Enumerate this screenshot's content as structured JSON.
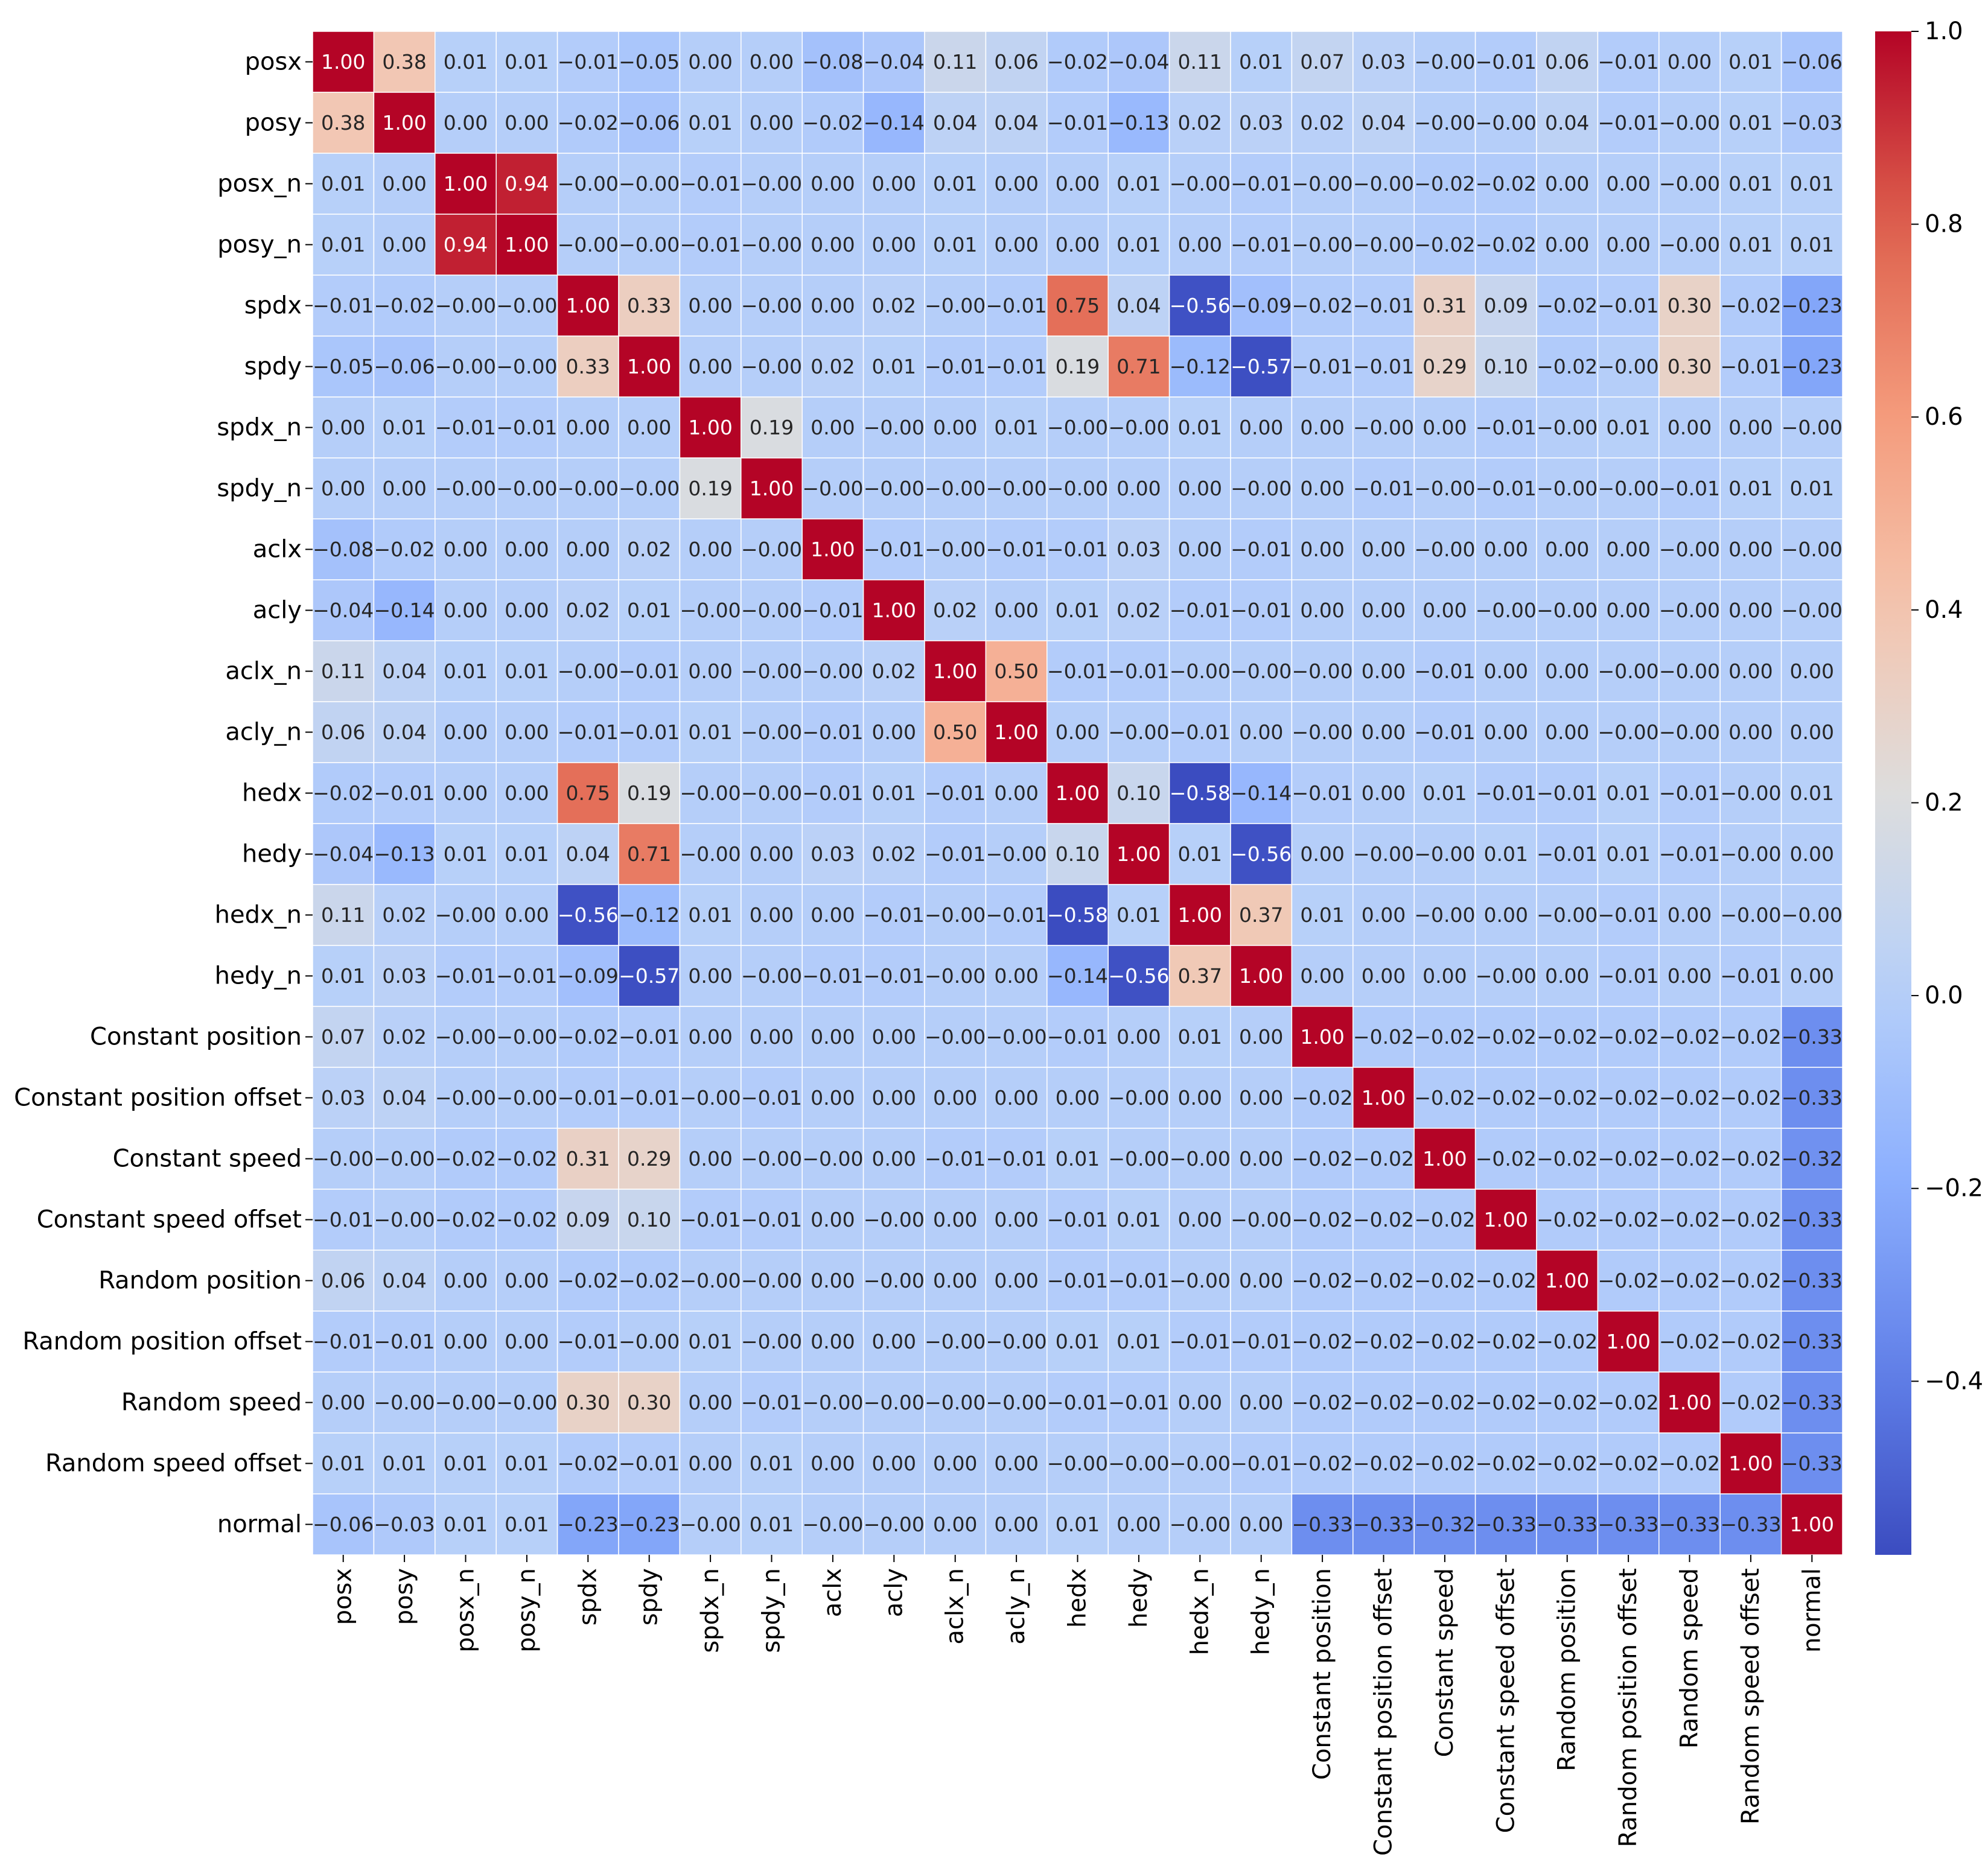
{
  "chart_data": {
    "type": "heatmap",
    "title": "",
    "xlabel": "",
    "ylabel": "",
    "colormap": "coolwarm",
    "vmin": -0.58,
    "vmax": 1.0,
    "annotated": true,
    "labels": [
      "posx",
      "posy",
      "posx_n",
      "posy_n",
      "spdx",
      "spdy",
      "spdx_n",
      "spdy_n",
      "aclx",
      "acly",
      "aclx_n",
      "acly_n",
      "hedx",
      "hedy",
      "hedx_n",
      "hedy_n",
      "Constant position",
      "Constant position offset",
      "Constant speed",
      "Constant speed offset",
      "Random position",
      "Random position offset",
      "Random speed",
      "Random speed offset",
      "normal"
    ],
    "matrix": [
      [
        1.0,
        0.38,
        0.01,
        0.01,
        -0.01,
        -0.05,
        0.0,
        0.0,
        -0.08,
        -0.04,
        0.11,
        0.06,
        -0.02,
        -0.04,
        0.11,
        0.01,
        0.07,
        0.03,
        -0.0,
        -0.01,
        0.06,
        -0.01,
        0.0,
        0.01,
        -0.06
      ],
      [
        0.38,
        1.0,
        0.0,
        0.0,
        -0.02,
        -0.06,
        0.01,
        0.0,
        -0.02,
        -0.14,
        0.04,
        0.04,
        -0.01,
        -0.13,
        0.02,
        0.03,
        0.02,
        0.04,
        -0.0,
        -0.0,
        0.04,
        -0.01,
        -0.0,
        0.01,
        -0.03
      ],
      [
        0.01,
        0.0,
        1.0,
        0.94,
        -0.0,
        -0.0,
        -0.01,
        -0.0,
        0.0,
        0.0,
        0.01,
        0.0,
        0.0,
        0.01,
        -0.0,
        -0.01,
        -0.0,
        -0.0,
        -0.02,
        -0.02,
        0.0,
        0.0,
        -0.0,
        0.01,
        0.01
      ],
      [
        0.01,
        0.0,
        0.94,
        1.0,
        -0.0,
        -0.0,
        -0.01,
        -0.0,
        0.0,
        0.0,
        0.01,
        0.0,
        0.0,
        0.01,
        0.0,
        -0.01,
        -0.0,
        -0.0,
        -0.02,
        -0.02,
        0.0,
        0.0,
        -0.0,
        0.01,
        0.01
      ],
      [
        -0.01,
        -0.02,
        -0.0,
        -0.0,
        1.0,
        0.33,
        0.0,
        -0.0,
        0.0,
        0.02,
        -0.0,
        -0.01,
        0.75,
        0.04,
        -0.56,
        -0.09,
        -0.02,
        -0.01,
        0.31,
        0.09,
        -0.02,
        -0.01,
        0.3,
        -0.02,
        -0.23
      ],
      [
        -0.05,
        -0.06,
        -0.0,
        -0.0,
        0.33,
        1.0,
        0.0,
        -0.0,
        0.02,
        0.01,
        -0.01,
        -0.01,
        0.19,
        0.71,
        -0.12,
        -0.57,
        -0.01,
        -0.01,
        0.29,
        0.1,
        -0.02,
        -0.0,
        0.3,
        -0.01,
        -0.23
      ],
      [
        0.0,
        0.01,
        -0.01,
        -0.01,
        0.0,
        0.0,
        1.0,
        0.19,
        0.0,
        -0.0,
        0.0,
        0.01,
        -0.0,
        -0.0,
        0.01,
        0.0,
        0.0,
        -0.0,
        0.0,
        -0.01,
        -0.0,
        0.01,
        0.0,
        0.0,
        -0.0
      ],
      [
        0.0,
        0.0,
        -0.0,
        -0.0,
        -0.0,
        -0.0,
        0.19,
        1.0,
        -0.0,
        -0.0,
        -0.0,
        -0.0,
        -0.0,
        0.0,
        0.0,
        -0.0,
        0.0,
        -0.01,
        -0.0,
        -0.01,
        -0.0,
        -0.0,
        -0.01,
        0.01,
        0.01
      ],
      [
        -0.08,
        -0.02,
        0.0,
        0.0,
        0.0,
        0.02,
        0.0,
        -0.0,
        1.0,
        -0.01,
        -0.0,
        -0.01,
        -0.01,
        0.03,
        0.0,
        -0.01,
        0.0,
        0.0,
        -0.0,
        0.0,
        0.0,
        0.0,
        -0.0,
        0.0,
        -0.0
      ],
      [
        -0.04,
        -0.14,
        0.0,
        0.0,
        0.02,
        0.01,
        -0.0,
        -0.0,
        -0.01,
        1.0,
        0.02,
        0.0,
        0.01,
        0.02,
        -0.01,
        -0.01,
        0.0,
        0.0,
        0.0,
        -0.0,
        -0.0,
        0.0,
        -0.0,
        0.0,
        -0.0
      ],
      [
        0.11,
        0.04,
        0.01,
        0.01,
        -0.0,
        -0.01,
        0.0,
        -0.0,
        -0.0,
        0.02,
        1.0,
        0.5,
        -0.01,
        -0.01,
        -0.0,
        -0.0,
        -0.0,
        0.0,
        -0.01,
        0.0,
        0.0,
        -0.0,
        -0.0,
        0.0,
        0.0
      ],
      [
        0.06,
        0.04,
        0.0,
        0.0,
        -0.01,
        -0.01,
        0.01,
        -0.0,
        -0.01,
        0.0,
        0.5,
        1.0,
        0.0,
        -0.0,
        -0.01,
        0.0,
        -0.0,
        0.0,
        -0.01,
        0.0,
        0.0,
        -0.0,
        -0.0,
        0.0,
        0.0
      ],
      [
        -0.02,
        -0.01,
        0.0,
        0.0,
        0.75,
        0.19,
        -0.0,
        -0.0,
        -0.01,
        0.01,
        -0.01,
        0.0,
        1.0,
        0.1,
        -0.58,
        -0.14,
        -0.01,
        0.0,
        0.01,
        -0.01,
        -0.01,
        0.01,
        -0.01,
        -0.0,
        0.01
      ],
      [
        -0.04,
        -0.13,
        0.01,
        0.01,
        0.04,
        0.71,
        -0.0,
        0.0,
        0.03,
        0.02,
        -0.01,
        -0.0,
        0.1,
        1.0,
        0.01,
        -0.56,
        0.0,
        -0.0,
        -0.0,
        0.01,
        -0.01,
        0.01,
        -0.01,
        -0.0,
        0.0
      ],
      [
        0.11,
        0.02,
        -0.0,
        0.0,
        -0.56,
        -0.12,
        0.01,
        0.0,
        0.0,
        -0.01,
        -0.0,
        -0.01,
        -0.58,
        0.01,
        1.0,
        0.37,
        0.01,
        0.0,
        -0.0,
        0.0,
        -0.0,
        -0.01,
        0.0,
        -0.0,
        -0.0
      ],
      [
        0.01,
        0.03,
        -0.01,
        -0.01,
        -0.09,
        -0.57,
        0.0,
        -0.0,
        -0.01,
        -0.01,
        -0.0,
        0.0,
        -0.14,
        -0.56,
        0.37,
        1.0,
        0.0,
        0.0,
        0.0,
        -0.0,
        0.0,
        -0.01,
        0.0,
        -0.01,
        0.0
      ],
      [
        0.07,
        0.02,
        -0.0,
        -0.0,
        -0.02,
        -0.01,
        0.0,
        0.0,
        0.0,
        0.0,
        -0.0,
        -0.0,
        -0.01,
        0.0,
        0.01,
        0.0,
        1.0,
        -0.02,
        -0.02,
        -0.02,
        -0.02,
        -0.02,
        -0.02,
        -0.02,
        -0.33
      ],
      [
        0.03,
        0.04,
        -0.0,
        -0.0,
        -0.01,
        -0.01,
        -0.0,
        -0.01,
        0.0,
        0.0,
        0.0,
        0.0,
        0.0,
        -0.0,
        0.0,
        0.0,
        -0.02,
        1.0,
        -0.02,
        -0.02,
        -0.02,
        -0.02,
        -0.02,
        -0.02,
        -0.33
      ],
      [
        -0.0,
        -0.0,
        -0.02,
        -0.02,
        0.31,
        0.29,
        0.0,
        -0.0,
        -0.0,
        0.0,
        -0.01,
        -0.01,
        0.01,
        -0.0,
        -0.0,
        0.0,
        -0.02,
        -0.02,
        1.0,
        -0.02,
        -0.02,
        -0.02,
        -0.02,
        -0.02,
        -0.32
      ],
      [
        -0.01,
        -0.0,
        -0.02,
        -0.02,
        0.09,
        0.1,
        -0.01,
        -0.01,
        0.0,
        -0.0,
        0.0,
        0.0,
        -0.01,
        0.01,
        0.0,
        -0.0,
        -0.02,
        -0.02,
        -0.02,
        1.0,
        -0.02,
        -0.02,
        -0.02,
        -0.02,
        -0.33
      ],
      [
        0.06,
        0.04,
        0.0,
        0.0,
        -0.02,
        -0.02,
        -0.0,
        -0.0,
        0.0,
        -0.0,
        0.0,
        0.0,
        -0.01,
        -0.01,
        -0.0,
        0.0,
        -0.02,
        -0.02,
        -0.02,
        -0.02,
        1.0,
        -0.02,
        -0.02,
        -0.02,
        -0.33
      ],
      [
        -0.01,
        -0.01,
        0.0,
        0.0,
        -0.01,
        -0.0,
        0.01,
        -0.0,
        0.0,
        0.0,
        -0.0,
        -0.0,
        0.01,
        0.01,
        -0.01,
        -0.01,
        -0.02,
        -0.02,
        -0.02,
        -0.02,
        -0.02,
        1.0,
        -0.02,
        -0.02,
        -0.33
      ],
      [
        0.0,
        -0.0,
        -0.0,
        -0.0,
        0.3,
        0.3,
        0.0,
        -0.01,
        -0.0,
        -0.0,
        -0.0,
        -0.0,
        -0.01,
        -0.01,
        0.0,
        0.0,
        -0.02,
        -0.02,
        -0.02,
        -0.02,
        -0.02,
        -0.02,
        1.0,
        -0.02,
        -0.33
      ],
      [
        0.01,
        0.01,
        0.01,
        0.01,
        -0.02,
        -0.01,
        0.0,
        0.01,
        0.0,
        0.0,
        0.0,
        0.0,
        -0.0,
        -0.0,
        -0.0,
        -0.01,
        -0.02,
        -0.02,
        -0.02,
        -0.02,
        -0.02,
        -0.02,
        -0.02,
        1.0,
        -0.33
      ],
      [
        -0.06,
        -0.03,
        0.01,
        0.01,
        -0.23,
        -0.23,
        -0.0,
        0.01,
        -0.0,
        -0.0,
        0.0,
        0.0,
        0.01,
        0.0,
        -0.0,
        0.0,
        -0.33,
        -0.33,
        -0.32,
        -0.33,
        -0.33,
        -0.33,
        -0.33,
        -0.33,
        1.0
      ]
    ],
    "colorbar": {
      "ticks": [
        1.0,
        0.8,
        0.6,
        0.4,
        0.2,
        0.0,
        -0.2,
        -0.4
      ],
      "tick_labels": [
        "1.0",
        "0.8",
        "0.6",
        "0.4",
        "0.2",
        "0.0",
        "−0.2",
        "−0.4"
      ]
    }
  }
}
